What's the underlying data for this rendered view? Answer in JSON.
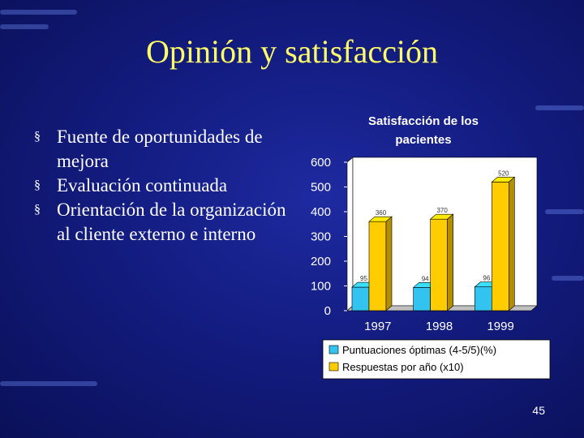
{
  "slide": {
    "title": "Opinión y satisfacción",
    "bullets": [
      "Fuente de oportunidades de mejora",
      "Evaluación continuada",
      "Orientación de la organización al cliente externo e interno"
    ],
    "bullet_icon": "square-bullet-icon",
    "page_number": "45",
    "colors": {
      "background": "#131c80",
      "title": "#ffff66",
      "text": "#ffffff"
    }
  },
  "chart_data": {
    "type": "bar",
    "title": "Satisfacción de los pacientes",
    "categories": [
      "1997",
      "1998",
      "1999"
    ],
    "series": [
      {
        "name": "Puntuaciones óptimas (4-5/5)(%)",
        "values": [
          95,
          94,
          96
        ],
        "color": "#33c3f0"
      },
      {
        "name": "Respuestas por año (x10)",
        "values": [
          360,
          370,
          520
        ],
        "color": "#ffcc00"
      }
    ],
    "ylim": [
      0,
      600
    ],
    "yticks": [
      0,
      100,
      200,
      300,
      400,
      500,
      600
    ],
    "legend_position": "bottom",
    "grid": false,
    "style": "3d-bar"
  }
}
